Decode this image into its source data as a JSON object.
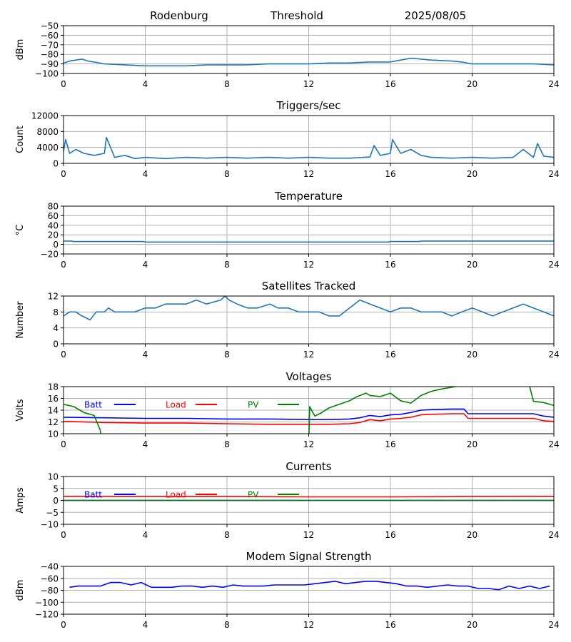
{
  "header": {
    "station": "Rodenburg",
    "mode": "Threshold",
    "date": "2025/08/05"
  },
  "colors": {
    "default_line": "#1f77b4",
    "batt": "#0000ff",
    "load": "#ff0000",
    "pv": "#008000",
    "grid": "#b0b0b0"
  },
  "chart_data": [
    {
      "type": "line",
      "title": "",
      "ylabel": "dBm",
      "xlim": [
        0,
        24
      ],
      "ylim": [
        -100,
        -50
      ],
      "x_ticks": [
        "0",
        "4",
        "8",
        "12",
        "16",
        "20",
        "24"
      ],
      "y_ticks": [
        "−100",
        "−90",
        "−80",
        "−70",
        "−60",
        "−50"
      ],
      "grid": true,
      "series": [
        {
          "x": [
            0,
            0.3,
            0.6,
            0.9,
            1.2,
            1.5,
            2,
            3,
            4,
            5,
            6,
            7,
            8,
            9,
            10,
            11,
            12,
            13,
            14,
            15,
            16,
            16.5,
            17,
            17.5,
            18,
            19,
            19.5,
            20,
            21,
            22,
            23,
            24
          ],
          "y": [
            -89,
            -87,
            -86,
            -85,
            -87,
            -88,
            -90,
            -91,
            -92,
            -92,
            -92,
            -91,
            -91,
            -91,
            -90,
            -90,
            -90,
            -89,
            -89,
            -88,
            -88,
            -86,
            -84,
            -85,
            -86,
            -87,
            -88,
            -90,
            -90,
            -90,
            -90,
            -91
          ]
        }
      ]
    },
    {
      "type": "line",
      "title": "Triggers/sec",
      "ylabel": "Count",
      "xlim": [
        0,
        24
      ],
      "ylim": [
        0,
        12000
      ],
      "x_ticks": [
        "0",
        "4",
        "8",
        "12",
        "16",
        "20",
        "24"
      ],
      "y_ticks": [
        "0",
        "4000",
        "8000",
        "12000"
      ],
      "grid": true,
      "series": [
        {
          "x": [
            0,
            0.1,
            0.3,
            0.6,
            1,
            1.5,
            2,
            2.1,
            2.5,
            3,
            3.5,
            4,
            5,
            6,
            7,
            8,
            9,
            10,
            11,
            12,
            13,
            14,
            15,
            15.2,
            15.5,
            16,
            16.1,
            16.5,
            17,
            17.5,
            18,
            19,
            20,
            21,
            22,
            22.5,
            23,
            23.2,
            23.5,
            24
          ],
          "y": [
            3000,
            6000,
            2500,
            3500,
            2500,
            2000,
            2500,
            6500,
            1500,
            2000,
            1200,
            1500,
            1200,
            1500,
            1300,
            1500,
            1300,
            1500,
            1300,
            1500,
            1300,
            1300,
            1600,
            4500,
            2000,
            2500,
            6000,
            2500,
            3500,
            2000,
            1500,
            1300,
            1500,
            1300,
            1500,
            3500,
            1500,
            5000,
            1800,
            1500
          ]
        }
      ]
    },
    {
      "type": "line",
      "title": "Temperature",
      "ylabel": "°C",
      "xlim": [
        0,
        24
      ],
      "ylim": [
        -20,
        80
      ],
      "x_ticks": [
        "0",
        "4",
        "8",
        "12",
        "16",
        "20",
        "24"
      ],
      "y_ticks": [
        "−20",
        "0",
        "20",
        "40",
        "60",
        "80"
      ],
      "grid": true,
      "series": [
        {
          "x": [
            0,
            0.4,
            0.5,
            3.9,
            4,
            15.9,
            16,
            17.4,
            17.5,
            24
          ],
          "y": [
            7,
            7,
            6,
            6,
            5,
            5,
            6,
            6,
            7,
            7
          ]
        }
      ]
    },
    {
      "type": "line",
      "title": "Satellites Tracked",
      "ylabel": "Number",
      "xlim": [
        0,
        24
      ],
      "ylim": [
        0,
        12
      ],
      "x_ticks": [
        "0",
        "4",
        "8",
        "12",
        "16",
        "20",
        "24"
      ],
      "y_ticks": [
        "0",
        "4",
        "8",
        "12"
      ],
      "grid": true,
      "series": [
        {
          "x": [
            0,
            0.3,
            0.6,
            0.9,
            1.3,
            1.6,
            2,
            2.2,
            2.5,
            2.8,
            3.5,
            4,
            4.5,
            5,
            5.5,
            6,
            6.5,
            7,
            7.7,
            7.9,
            8.1,
            8.5,
            9,
            9.5,
            10.1,
            10.5,
            11,
            11.5,
            12,
            12.5,
            13,
            13.5,
            14,
            14.5,
            15,
            15.5,
            16,
            16.5,
            17,
            17.5,
            18,
            18.5,
            19,
            19.5,
            20,
            20.5,
            21,
            21.5,
            22,
            22.5,
            23,
            23.5,
            24
          ],
          "y": [
            7,
            8,
            8,
            7,
            6,
            8,
            8,
            9,
            8,
            8,
            8,
            9,
            9,
            10,
            10,
            10,
            11,
            10,
            11,
            12,
            11,
            10,
            9,
            9,
            10,
            9,
            9,
            8,
            8,
            8,
            7,
            7,
            9,
            11,
            10,
            9,
            8,
            9,
            9,
            8,
            8,
            8,
            7,
            8,
            9,
            8,
            7,
            8,
            9,
            10,
            9,
            8,
            7
          ]
        }
      ]
    },
    {
      "type": "line",
      "title": "Voltages",
      "ylabel": "Volts",
      "xlim": [
        0,
        24
      ],
      "ylim": [
        10,
        18
      ],
      "x_ticks": [
        "0",
        "4",
        "8",
        "12",
        "16",
        "20",
        "24"
      ],
      "y_ticks": [
        "10",
        "12",
        "14",
        "16",
        "18"
      ],
      "grid": true,
      "legend": "inside-top",
      "series": [
        {
          "name": "Batt",
          "color": "#0000ff",
          "x": [
            0,
            2,
            4,
            6,
            8,
            10,
            12,
            13,
            14,
            14.5,
            15,
            15.5,
            16,
            16.5,
            17,
            17.5,
            18,
            19,
            19.6,
            19.8,
            20,
            22,
            23,
            23.5,
            24
          ],
          "y": [
            12.8,
            12.7,
            12.6,
            12.6,
            12.5,
            12.5,
            12.4,
            12.4,
            12.5,
            12.7,
            13.1,
            12.9,
            13.2,
            13.3,
            13.6,
            14.0,
            14.1,
            14.2,
            14.2,
            13.4,
            13.4,
            13.4,
            13.4,
            13.0,
            12.8
          ]
        },
        {
          "name": "Load",
          "color": "#ff0000",
          "x": [
            0,
            2,
            4,
            6,
            8,
            10,
            12,
            13,
            14,
            14.5,
            15,
            15.5,
            16,
            16.5,
            17,
            17.5,
            18,
            19,
            19.6,
            19.8,
            20,
            22,
            23,
            23.5,
            24
          ],
          "y": [
            12.1,
            11.9,
            11.8,
            11.8,
            11.7,
            11.6,
            11.6,
            11.6,
            11.7,
            11.9,
            12.4,
            12.2,
            12.5,
            12.6,
            12.8,
            13.2,
            13.3,
            13.4,
            13.4,
            12.6,
            12.6,
            12.6,
            12.6,
            12.2,
            12.1
          ]
        },
        {
          "name": "PV",
          "color": "#008000",
          "x": [
            0,
            0.5,
            1,
            1.5,
            1.8,
            1.9,
            12.0,
            12.05,
            12.3,
            12.6,
            13,
            13.5,
            14,
            14.3,
            14.8,
            15,
            15.5,
            16,
            16.5,
            17,
            17.5,
            18,
            18.5,
            19.5,
            22.8,
            23,
            23.5,
            24
          ],
          "y": [
            15.0,
            14.6,
            13.6,
            13.1,
            10.6,
            8.0,
            8.0,
            14.6,
            13.0,
            13.5,
            14.4,
            15.0,
            15.6,
            16.2,
            16.9,
            16.5,
            16.3,
            16.9,
            15.6,
            15.2,
            16.5,
            17.2,
            17.6,
            18.2,
            18.2,
            15.5,
            15.3,
            14.8
          ]
        }
      ]
    },
    {
      "type": "line",
      "title": "Currents",
      "ylabel": "Amps",
      "xlim": [
        0,
        24
      ],
      "ylim": [
        -10,
        10
      ],
      "x_ticks": [
        "0",
        "4",
        "8",
        "12",
        "16",
        "20",
        "24"
      ],
      "y_ticks": [
        "−10",
        "−5",
        "0",
        "5",
        "10"
      ],
      "grid": true,
      "legend": "inside-top",
      "series": [
        {
          "name": "Batt",
          "color": "#0000ff",
          "x": [
            0,
            24
          ],
          "y": [
            0.0,
            0.0
          ]
        },
        {
          "name": "Load",
          "color": "#ff0000",
          "x": [
            0,
            4,
            8,
            12,
            16,
            20,
            24
          ],
          "y": [
            1.7,
            1.6,
            1.6,
            1.5,
            1.5,
            1.6,
            1.7
          ]
        },
        {
          "name": "PV",
          "color": "#008000",
          "x": [
            0,
            24
          ],
          "y": [
            0.0,
            0.0
          ]
        }
      ]
    },
    {
      "type": "line",
      "title": "Modem Signal Strength",
      "ylabel": "dBm",
      "xlim": [
        0,
        24
      ],
      "ylim": [
        -120,
        -40
      ],
      "x_ticks": [
        "0",
        "4",
        "8",
        "12",
        "16",
        "20",
        "24"
      ],
      "y_ticks": [
        "−120",
        "−100",
        "−80",
        "−60",
        "−40"
      ],
      "grid": true,
      "series": [
        {
          "color": "#0000ff",
          "x": [
            0.3,
            0.7,
            1.8,
            2.3,
            2.8,
            3.3,
            3.8,
            4.3,
            5.3,
            5.8,
            6.3,
            6.8,
            7.3,
            7.8,
            8.3,
            8.8,
            9.8,
            10.3,
            10.8,
            11.8,
            12.3,
            13.3,
            13.8,
            14.3,
            14.8,
            15.3,
            16.3,
            16.8,
            17.3,
            17.8,
            18.8,
            19.3,
            19.8,
            20.3,
            20.8,
            21.3,
            21.8,
            22.3,
            22.8,
            23.3,
            23.8
          ],
          "y": [
            -75,
            -73,
            -73,
            -67,
            -67,
            -71,
            -67,
            -75,
            -75,
            -73,
            -73,
            -75,
            -73,
            -75,
            -71,
            -73,
            -73,
            -71,
            -71,
            -71,
            -69,
            -65,
            -69,
            -67,
            -65,
            -65,
            -69,
            -73,
            -73,
            -75,
            -71,
            -73,
            -73,
            -77,
            -77,
            -79,
            -73,
            -77,
            -73,
            -77,
            -73
          ]
        }
      ]
    }
  ]
}
